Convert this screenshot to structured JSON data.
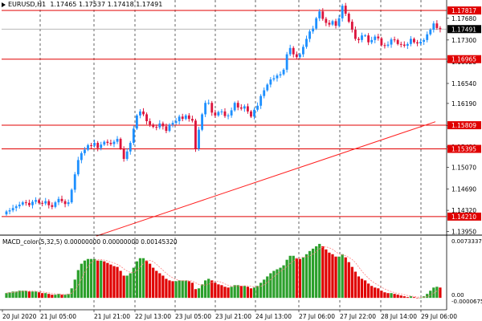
{
  "header": {
    "symbol_tf": "EURUSD,H1",
    "open": "1.17465",
    "high": "1.17537",
    "low": "1.17418",
    "close": "1.17491"
  },
  "indicator": {
    "label": "MACD_color(5,32,5)",
    "v1": "0.00000000",
    "v2": "0.00000000",
    "v3": "0.00145320"
  },
  "colors": {
    "bull": "#1e90ff",
    "bear": "#dc143c",
    "hline": "#e00000",
    "trend": "#ff2020",
    "macd_up": "#2ca02c",
    "macd_down": "#e00000",
    "signal": "#ff8080",
    "grid": "#000000"
  },
  "chart_data": [
    {
      "type": "candlestick",
      "title": "EURUSD,H1",
      "ylim": [
        1.139,
        1.18
      ],
      "price_axis_labels": [
        "1.17680",
        "1.17300",
        "1.16920",
        "1.16540",
        "1.16190",
        "1.15800",
        "1.15430",
        "1.15070",
        "1.14690",
        "1.14320",
        "1.13950"
      ],
      "hlines": [
        1.17817,
        1.16965,
        1.15809,
        1.15395,
        1.1421
      ],
      "hline_labels": [
        "1.17817",
        "1.16965",
        "1.15809",
        "1.15395",
        "1.14210"
      ],
      "current_price": 1.17491,
      "current_price_label": "1.17491",
      "trendline": {
        "from": 1.1387,
        "to": 1.1587
      },
      "time_labels": [
        "20 Jul 2020",
        "21 Jul 05:00",
        "21 Jul 21:00",
        "22 Jul 13:00",
        "23 Jul 05:00",
        "23 Jul 21:00",
        "24 Jul 13:00",
        "27 Jul 06:00",
        "27 Jul 22:00",
        "28 Jul 14:00",
        "29 Jul 06:00"
      ],
      "close": [
        1.143,
        1.1432,
        1.1436,
        1.1439,
        1.1442,
        1.1446,
        1.1445,
        1.1441,
        1.1447,
        1.145,
        1.1445,
        1.1444,
        1.1448,
        1.1441,
        1.1438,
        1.1446,
        1.1452,
        1.1448,
        1.1443,
        1.1446,
        1.1468,
        1.1495,
        1.152,
        1.1532,
        1.1538,
        1.1546,
        1.1545,
        1.155,
        1.1541,
        1.1547,
        1.1552,
        1.155,
        1.1548,
        1.1552,
        1.1557,
        1.154,
        1.1522,
        1.1535,
        1.155,
        1.1575,
        1.1598,
        1.1605,
        1.16,
        1.1588,
        1.1582,
        1.1578,
        1.1577,
        1.1584,
        1.1579,
        1.1571,
        1.1582,
        1.1585,
        1.1588,
        1.1596,
        1.1592,
        1.1598,
        1.1592,
        1.1589,
        1.154,
        1.1573,
        1.16,
        1.162,
        1.162,
        1.1603,
        1.1598,
        1.1604,
        1.1605,
        1.1597,
        1.1598,
        1.1607,
        1.162,
        1.1612,
        1.161,
        1.1614,
        1.1605,
        1.1596,
        1.1608,
        1.1615,
        1.1632,
        1.1642,
        1.1652,
        1.1661,
        1.1663,
        1.1668,
        1.167,
        1.1678,
        1.1705,
        1.1716,
        1.1705,
        1.17,
        1.1705,
        1.1718,
        1.1732,
        1.1745,
        1.175,
        1.1768,
        1.178,
        1.1767,
        1.176,
        1.1757,
        1.1763,
        1.1755,
        1.1768,
        1.179,
        1.1776,
        1.1762,
        1.1748,
        1.1732,
        1.173,
        1.1738,
        1.1738,
        1.1726,
        1.173,
        1.1736,
        1.1733,
        1.1721,
        1.172,
        1.1722,
        1.1731,
        1.173,
        1.1723,
        1.1722,
        1.172,
        1.1723,
        1.1732,
        1.1726,
        1.1724,
        1.1727,
        1.173,
        1.174,
        1.1748,
        1.1759,
        1.1751,
        1.1749
      ],
      "open_first": 1.1425
    },
    {
      "type": "bar",
      "title": "MACD_color(5,32,5)",
      "ylim": [
        -0.0015,
        0.0076
      ],
      "axis_labels": [
        "0.00733370",
        "0.00",
        "-0.00006757"
      ],
      "macd": [
        0.0006,
        0.0007,
        0.0008,
        0.0008,
        0.0009,
        0.0009,
        0.0009,
        0.0008,
        0.0008,
        0.0008,
        0.0007,
        0.0006,
        0.0006,
        0.0005,
        0.0004,
        0.0004,
        0.0005,
        0.0004,
        0.0004,
        0.0005,
        0.0012,
        0.0023,
        0.0035,
        0.0043,
        0.0047,
        0.0049,
        0.0049,
        0.0049,
        0.0047,
        0.0047,
        0.0046,
        0.0044,
        0.0042,
        0.004,
        0.0039,
        0.0034,
        0.0028,
        0.0028,
        0.0031,
        0.0038,
        0.0046,
        0.005,
        0.005,
        0.0047,
        0.0043,
        0.0038,
        0.0034,
        0.0031,
        0.0028,
        0.0024,
        0.0022,
        0.0021,
        0.0021,
        0.0022,
        0.0022,
        0.0022,
        0.0021,
        0.0019,
        0.0011,
        0.0012,
        0.0017,
        0.0022,
        0.0024,
        0.0022,
        0.0019,
        0.0017,
        0.0016,
        0.0014,
        0.0013,
        0.0014,
        0.0016,
        0.0016,
        0.0015,
        0.0015,
        0.0014,
        0.0012,
        0.0013,
        0.0015,
        0.0019,
        0.0023,
        0.0027,
        0.0031,
        0.0034,
        0.0036,
        0.0038,
        0.0041,
        0.0048,
        0.0053,
        0.0053,
        0.005,
        0.0049,
        0.0051,
        0.0055,
        0.0059,
        0.0062,
        0.0065,
        0.0068,
        0.0065,
        0.0061,
        0.0057,
        0.0055,
        0.0052,
        0.0052,
        0.0055,
        0.0051,
        0.0045,
        0.0039,
        0.0033,
        0.0027,
        0.0024,
        0.0022,
        0.0018,
        0.0015,
        0.0013,
        0.0012,
        0.0009,
        0.0007,
        0.0006,
        0.0006,
        0.0005,
        0.0004,
        0.0003,
        0.0002,
        0.0001,
        0.0002,
        0.0001,
        0.0,
        0.0,
        0.0002,
        0.0005,
        0.0009,
        0.0013,
        0.0014,
        0.0013
      ]
    }
  ]
}
